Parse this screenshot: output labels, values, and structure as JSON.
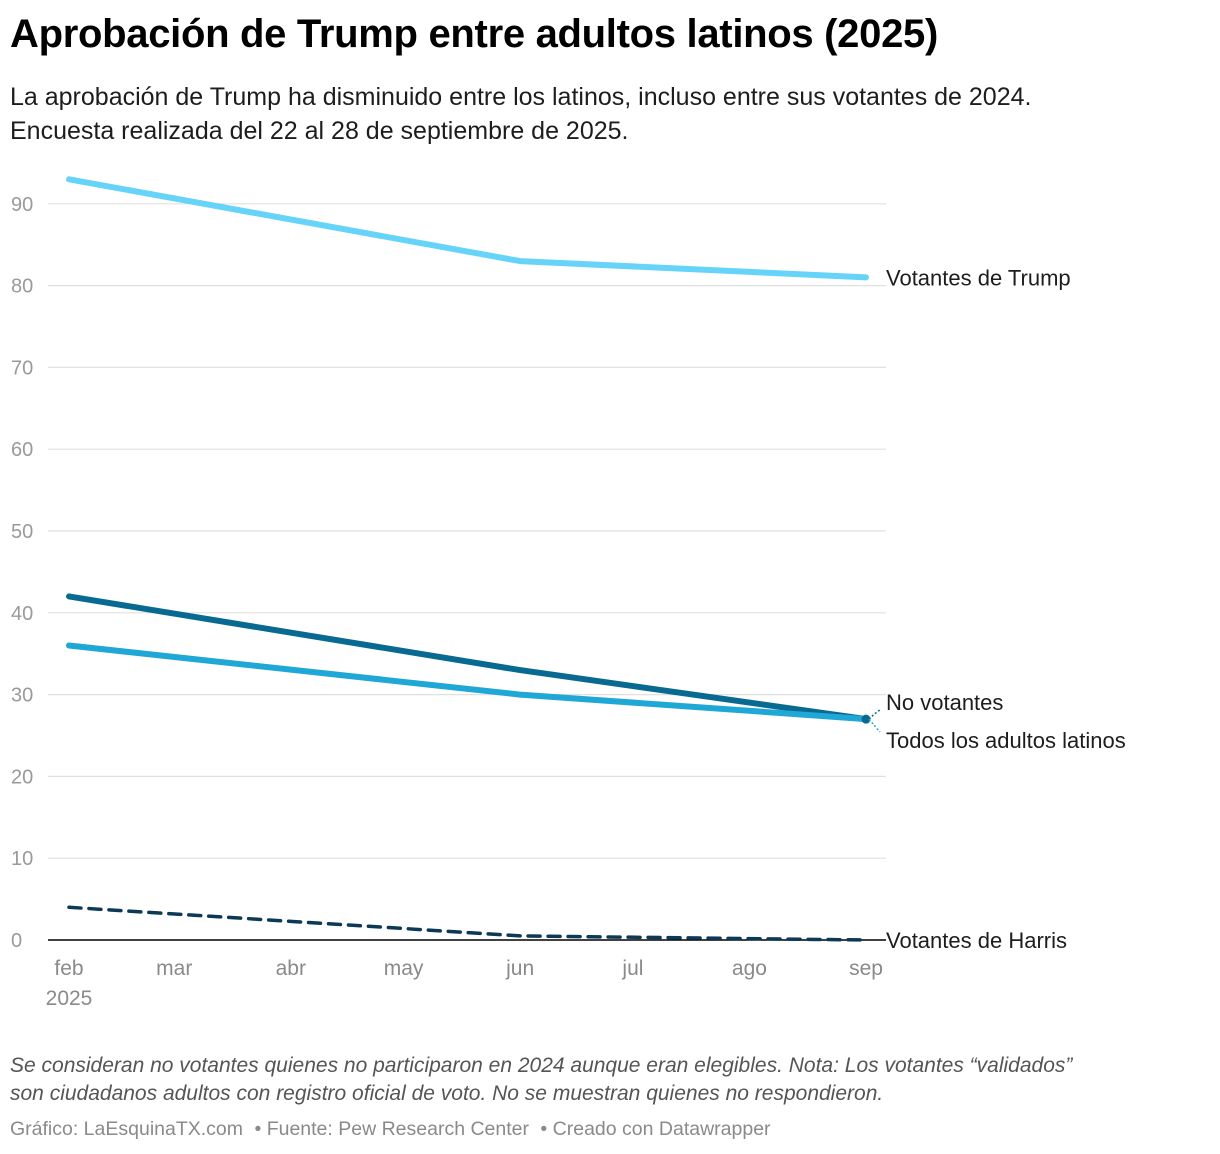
{
  "title": "Aprobación de Trump entre adultos latinos (2025)",
  "subtitle_lines": [
    "La aprobación de Trump ha disminuido entre los latinos, incluso entre sus votantes de 2024.",
    "Encuesta realizada del 22 al 28 de septiembre de 2025."
  ],
  "notes_lines": [
    "Se consideran no votantes quienes no participaron en 2024 aunque eran elegibles. Nota: Los votantes “validados”",
    "son ciudadanos adultos con registro oficial de voto. No se muestran quienes no respondieron."
  ],
  "footer": {
    "credit": "Gráfico: LaEsquinaTX.com",
    "source": "• Fuente: Pew Research Center",
    "tool": "• Creado con Datawrapper"
  },
  "chart_data": {
    "type": "line",
    "x_tick_labels": [
      "feb",
      "mar",
      "abr",
      "may",
      "jun",
      "jul",
      "ago",
      "sep"
    ],
    "x_year_label": "2025",
    "y_ticks": [
      0,
      10,
      20,
      30,
      40,
      50,
      60,
      70,
      80,
      90
    ],
    "ylim": [
      0,
      93
    ],
    "grid": true,
    "legend": "direct labels at line ends",
    "series": [
      {
        "name": "Votantes de Trump",
        "color": "#66d4f8",
        "dash": false,
        "points": [
          [
            "2025-02-01",
            93
          ],
          [
            "2025-06-01",
            83
          ],
          [
            "2025-09-01",
            81
          ]
        ]
      },
      {
        "name": "No votantes",
        "color": "#086a91",
        "dash": false,
        "points": [
          [
            "2025-02-01",
            42
          ],
          [
            "2025-06-01",
            33
          ],
          [
            "2025-09-01",
            27
          ]
        ]
      },
      {
        "name": "Todos los adultos latinos",
        "color": "#1fa7d6",
        "dash": false,
        "points": [
          [
            "2025-02-01",
            36
          ],
          [
            "2025-06-01",
            30
          ],
          [
            "2025-09-01",
            27
          ]
        ]
      },
      {
        "name": "Votantes de Harris",
        "color": "#0c3955",
        "dash": true,
        "points": [
          [
            "2025-02-01",
            4
          ],
          [
            "2025-06-01",
            0.5
          ],
          [
            "2025-09-01",
            0
          ]
        ]
      }
    ]
  }
}
